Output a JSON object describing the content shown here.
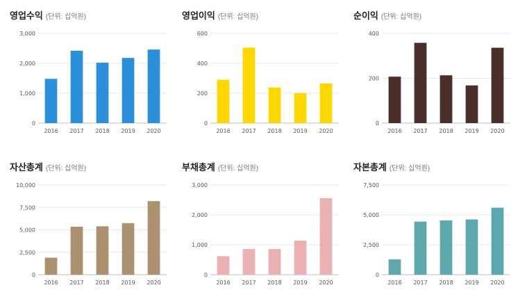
{
  "chart_data": [
    {
      "type": "bar",
      "title": "영업수익",
      "unit_label": "(단위: 십억원)",
      "categories": [
        "2016",
        "2017",
        "2018",
        "2019",
        "2020"
      ],
      "values": [
        1480,
        2420,
        2020,
        2180,
        2460
      ],
      "yticks": [
        "0",
        "1,000",
        "2,000",
        "3,000"
      ],
      "ylim": [
        0,
        3000
      ],
      "color": "#2b8fd9"
    },
    {
      "type": "bar",
      "title": "영업이익",
      "unit_label": "(단위: 십억원)",
      "categories": [
        "2016",
        "2017",
        "2018",
        "2019",
        "2020"
      ],
      "values": [
        290,
        505,
        238,
        200,
        265
      ],
      "yticks": [
        "0",
        "200",
        "400",
        "600"
      ],
      "ylim": [
        0,
        600
      ],
      "color": "#fed700"
    },
    {
      "type": "bar",
      "title": "순이익",
      "unit_label": "(단위: 십억원)",
      "categories": [
        "2016",
        "2017",
        "2018",
        "2019",
        "2020"
      ],
      "values": [
        207,
        358,
        213,
        168,
        336
      ],
      "yticks": [
        "0",
        "200",
        "400"
      ],
      "ylim": [
        0,
        400
      ],
      "color": "#4a2f29"
    },
    {
      "type": "bar",
      "title": "자산총계",
      "unit_label": "(단위: 십억원)",
      "categories": [
        "2016",
        "2017",
        "2018",
        "2019",
        "2020"
      ],
      "values": [
        1900,
        5350,
        5400,
        5750,
        8200
      ],
      "yticks": [
        "0",
        "2,500",
        "5,000",
        "7,500",
        "10,000"
      ],
      "ylim": [
        0,
        10000
      ],
      "color": "#ab916f"
    },
    {
      "type": "bar",
      "title": "부채총계",
      "unit_label": "(단위: 십억원)",
      "categories": [
        "2016",
        "2017",
        "2018",
        "2019",
        "2020"
      ],
      "values": [
        620,
        860,
        860,
        1140,
        2560
      ],
      "yticks": [
        "0",
        "1,000",
        "2,000",
        "3,000"
      ],
      "ylim": [
        0,
        3000
      ],
      "color": "#e9b1b2"
    },
    {
      "type": "bar",
      "title": "자본총계",
      "unit_label": "(단위: 십억원)",
      "categories": [
        "2016",
        "2017",
        "2018",
        "2019",
        "2020"
      ],
      "values": [
        1280,
        4440,
        4540,
        4620,
        5600
      ],
      "yticks": [
        "0",
        "2,500",
        "5,000",
        "7,500"
      ],
      "ylim": [
        0,
        7500
      ],
      "color": "#5da8ad"
    }
  ]
}
